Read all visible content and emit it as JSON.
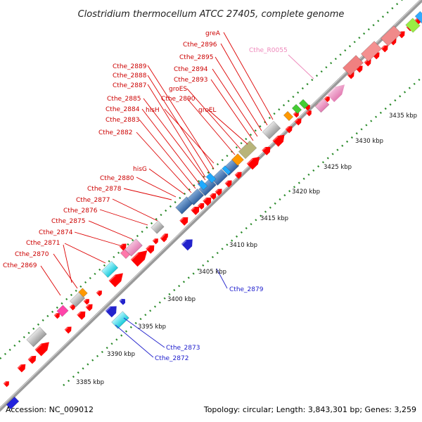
{
  "title": "Clostridium thermocellum ATCC 27405, complete genome",
  "footer": {
    "accession": "Accession: NC_009012",
    "summary": "Topology: circular; Length: 3,843,301 bp; Genes: 3,259"
  },
  "ticks": [
    "3385 kbp",
    "3390 kbp",
    "3395 kbp",
    "3400 kbp",
    "3405 kbp",
    "3410 kbp",
    "3415 kbp",
    "3420 kbp",
    "3425 kbp",
    "3430 kbp",
    "3435 kbp"
  ],
  "labels_upper": [
    "greA",
    "Cthe_2896",
    "Cthe_2895",
    "Cthe_2894",
    "Cthe_2893",
    "groES",
    "Cthe_2890",
    "Cthe_2889",
    "Cthe_2888",
    "Cthe_2887",
    "groEL",
    "hisH",
    "Cthe_2885",
    "Cthe_2884",
    "Cthe_2883",
    "Cthe_2882",
    "hisG",
    "Cthe_2880",
    "Cthe_2878",
    "Cthe_2877",
    "Cthe_2876",
    "Cthe_2875",
    "Cthe_2874",
    "Cthe_2871",
    "Cthe_2870",
    "Cthe_2869"
  ],
  "label_rna": "Cthe_R0055",
  "labels_lower": [
    "Cthe_2879",
    "Cthe_2873",
    "Cthe_2872"
  ],
  "colors": {
    "cds": "#ff0000",
    "label_red": "#cc0000",
    "label_blue": "#1a1acc",
    "label_pink": "#ee88bb",
    "backbone": "#888888",
    "dots": "#2a8a2a"
  }
}
